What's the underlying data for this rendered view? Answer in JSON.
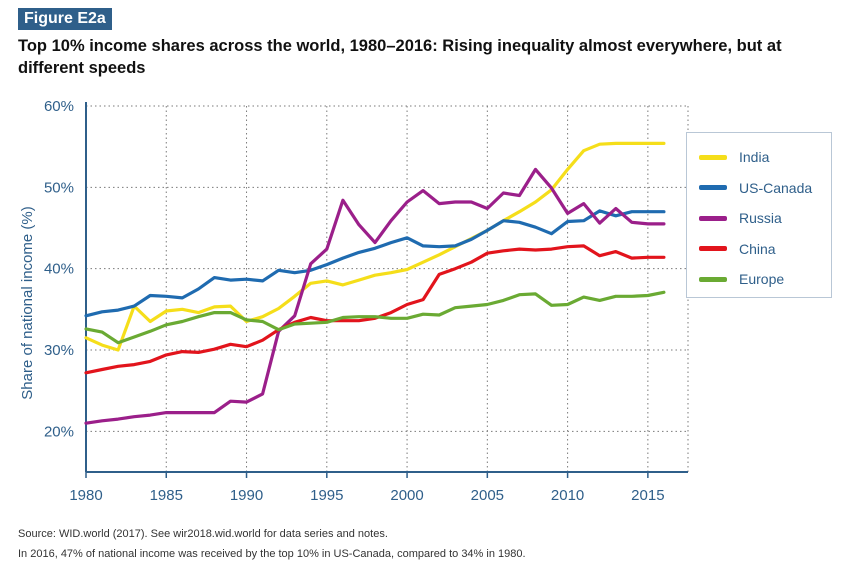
{
  "figure_label": "Figure E2a",
  "title": "Top 10% income shares across the world, 1980–2016: Rising inequality almost everywhere, but at different speeds",
  "source": "Source: WID.world (2017). See wir2018.wid.world for data series and notes.",
  "note": "In 2016, 47% of national income was received by the top 10% in US-Canada, compared to 34% in 1980.",
  "chart_data": {
    "type": "line",
    "title": "Top 10% income shares across the world, 1980–2016: Rising inequality almost everywhere, but at different speeds",
    "xlabel": "",
    "ylabel": "Share of national income (%)",
    "xlim": [
      1980,
      2017.5
    ],
    "ylim": [
      15,
      60
    ],
    "x_ticks": [
      1980,
      1985,
      1990,
      1995,
      2000,
      2005,
      2010,
      2015
    ],
    "x_tick_labels": [
      "1980",
      "1985",
      "1990",
      "1995",
      "2000",
      "2005",
      "2010",
      "2015"
    ],
    "y_ticks": [
      20,
      30,
      40,
      50,
      60
    ],
    "y_tick_labels": [
      "20%",
      "30%",
      "40%",
      "50%",
      "60%"
    ],
    "grid": true,
    "legend": "right",
    "x": [
      1980,
      1981,
      1982,
      1983,
      1984,
      1985,
      1986,
      1987,
      1988,
      1989,
      1990,
      1991,
      1992,
      1993,
      1994,
      1995,
      1996,
      1997,
      1998,
      1999,
      2000,
      2001,
      2002,
      2003,
      2004,
      2005,
      2006,
      2007,
      2008,
      2009,
      2010,
      2011,
      2012,
      2013,
      2014,
      2015,
      2016
    ],
    "series": [
      {
        "name": "India",
        "color": "#f5de1a",
        "values": [
          31.5,
          30.6,
          30.0,
          35.4,
          33.5,
          34.8,
          35.0,
          34.6,
          35.3,
          35.4,
          33.5,
          34.1,
          35.1,
          36.6,
          38.2,
          38.5,
          38.0,
          38.6,
          39.2,
          39.5,
          39.9,
          40.8,
          41.7,
          42.7,
          43.7,
          44.7,
          45.9,
          47.0,
          48.2,
          49.7,
          52.2,
          54.5,
          55.3,
          55.4,
          55.4,
          55.4,
          55.4
        ]
      },
      {
        "name": "US-Canada",
        "color": "#1f6bb0",
        "values": [
          34.2,
          34.7,
          34.9,
          35.4,
          36.7,
          36.6,
          36.4,
          37.5,
          38.9,
          38.6,
          38.7,
          38.5,
          39.8,
          39.5,
          39.8,
          40.5,
          41.3,
          42.0,
          42.5,
          43.2,
          43.8,
          42.8,
          42.7,
          42.8,
          43.6,
          44.7,
          45.9,
          45.7,
          45.1,
          44.3,
          45.8,
          45.9,
          47.1,
          46.5,
          47.0,
          47.0,
          47.0
        ]
      },
      {
        "name": "Russia",
        "color": "#9b1f8a",
        "values": [
          21.0,
          21.3,
          21.5,
          21.8,
          22.0,
          22.3,
          22.3,
          22.3,
          22.3,
          23.7,
          23.6,
          24.6,
          32.3,
          34.2,
          40.6,
          42.4,
          48.4,
          45.4,
          43.2,
          45.9,
          48.2,
          49.6,
          48.0,
          48.2,
          48.2,
          47.4,
          49.3,
          49.0,
          52.2,
          49.9,
          46.8,
          48.0,
          45.6,
          47.4,
          45.7,
          45.5,
          45.5
        ]
      },
      {
        "name": "China",
        "color": "#e2141c",
        "values": [
          27.2,
          27.6,
          28.0,
          28.2,
          28.6,
          29.4,
          29.8,
          29.7,
          30.1,
          30.7,
          30.4,
          31.2,
          32.5,
          33.4,
          34.0,
          33.6,
          33.6,
          33.6,
          33.9,
          34.6,
          35.6,
          36.2,
          39.3,
          40.0,
          40.8,
          41.9,
          42.2,
          42.4,
          42.3,
          42.4,
          42.7,
          42.8,
          41.6,
          42.1,
          41.3,
          41.4,
          41.4
        ]
      },
      {
        "name": "Europe",
        "color": "#6aaa33",
        "values": [
          32.6,
          32.2,
          30.9,
          31.6,
          32.3,
          33.1,
          33.5,
          34.1,
          34.6,
          34.6,
          33.7,
          33.5,
          32.5,
          33.2,
          33.3,
          33.4,
          34.0,
          34.1,
          34.1,
          33.9,
          33.9,
          34.4,
          34.3,
          35.2,
          35.4,
          35.6,
          36.1,
          36.8,
          36.9,
          35.5,
          35.6,
          36.5,
          36.1,
          36.6,
          36.6,
          36.7,
          37.1
        ]
      }
    ]
  }
}
